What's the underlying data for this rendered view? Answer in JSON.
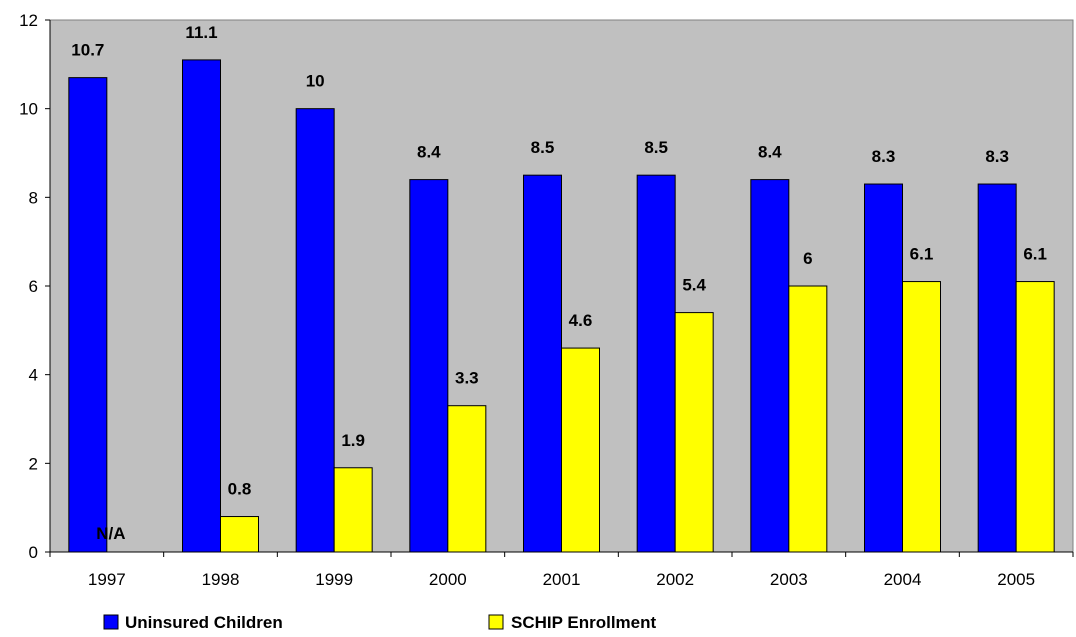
{
  "chart_data": {
    "type": "bar",
    "categories": [
      "1997",
      "1998",
      "1999",
      "2000",
      "2001",
      "2002",
      "2003",
      "2004",
      "2005"
    ],
    "series": [
      {
        "name": "Uninsured Children",
        "color": "#0000FF",
        "values": [
          10.7,
          11.1,
          10,
          8.4,
          8.5,
          8.5,
          8.4,
          8.3,
          8.3
        ],
        "labels": [
          "10.7",
          "11.1",
          "10",
          "8.4",
          "8.5",
          "8.5",
          "8.4",
          "8.3",
          "8.3"
        ]
      },
      {
        "name": "SCHIP Enrollment",
        "color": "#FFFF00",
        "values": [
          null,
          0.8,
          1.9,
          3.3,
          4.6,
          5.4,
          6,
          6.1,
          6.1
        ],
        "labels": [
          "N/A",
          "0.8",
          "1.9",
          "3.3",
          "4.6",
          "5.4",
          "6",
          "6.1",
          "6.1"
        ]
      }
    ],
    "ylim": [
      0,
      12
    ],
    "yticks": [
      "0",
      "2",
      "4",
      "6",
      "8",
      "10",
      "12"
    ],
    "title": "",
    "xlabel": "",
    "ylabel": "",
    "grid": false,
    "plot_background": "#C0C0C0",
    "legend_position": "bottom"
  }
}
